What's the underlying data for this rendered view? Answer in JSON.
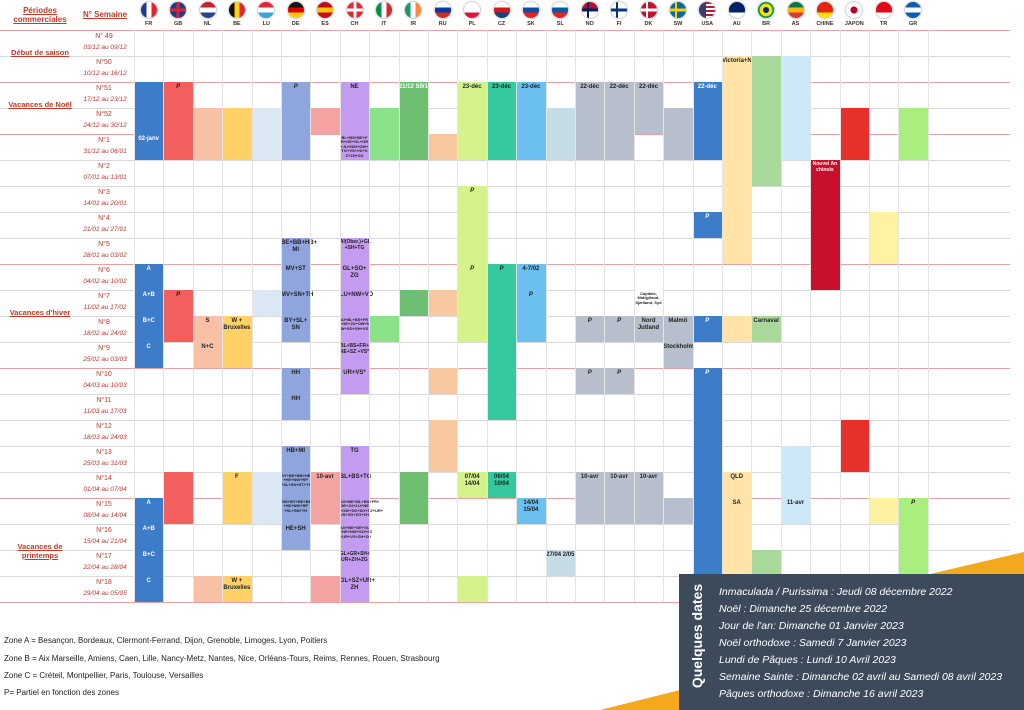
{
  "header": {
    "periods_label": "Périodes commerciales",
    "semaine_label": "N° Semaine"
  },
  "countries": [
    {
      "code": "FR",
      "flag": [
        "#1f3c8f",
        "#ffffff",
        "#e3262f"
      ],
      "dir": "v"
    },
    {
      "code": "GB",
      "flag": [
        "#1f3c8f",
        "#ffffff",
        "#d6262f"
      ],
      "dir": "uk"
    },
    {
      "code": "NL",
      "flag": [
        "#c8202d",
        "#ffffff",
        "#21468b"
      ],
      "dir": "h"
    },
    {
      "code": "BE",
      "flag": [
        "#111111",
        "#f7d417",
        "#e3262f"
      ],
      "dir": "v"
    },
    {
      "code": "LU",
      "flag": [
        "#e3262f",
        "#ffffff",
        "#3aa3dc"
      ],
      "dir": "h"
    },
    {
      "code": "DE",
      "flag": [
        "#111111",
        "#dd0000",
        "#ffce00"
      ],
      "dir": "h"
    },
    {
      "code": "ES",
      "flag": [
        "#c60b1e",
        "#ffc400",
        "#c60b1e"
      ],
      "dir": "h"
    },
    {
      "code": "CH",
      "flag": [
        "#e3262f",
        "#ffffff",
        "#e3262f"
      ],
      "dir": "cross"
    },
    {
      "code": "IT",
      "flag": [
        "#009246",
        "#ffffff",
        "#ce2b37"
      ],
      "dir": "v"
    },
    {
      "code": "IR",
      "flag": [
        "#169b62",
        "#ffffff",
        "#ff883e"
      ],
      "dir": "v"
    },
    {
      "code": "RU",
      "flag": [
        "#ffffff",
        "#0039a6",
        "#d52b1e"
      ],
      "dir": "h"
    },
    {
      "code": "PL",
      "flag": [
        "#ffffff",
        "#ffffff",
        "#dc143c"
      ],
      "dir": "h"
    },
    {
      "code": "CZ",
      "flag": [
        "#ffffff",
        "#d7141a",
        "#11457e"
      ],
      "dir": "h"
    },
    {
      "code": "SK",
      "flag": [
        "#ffffff",
        "#0b4ea2",
        "#ee1c25"
      ],
      "dir": "h"
    },
    {
      "code": "SL",
      "flag": [
        "#ffffff",
        "#005da4",
        "#ed1c24"
      ],
      "dir": "h"
    },
    {
      "code": "NO",
      "flag": [
        "#ba0c2f",
        "#ffffff",
        "#00205b"
      ],
      "dir": "nordic"
    },
    {
      "code": "FI",
      "flag": [
        "#ffffff",
        "#ffffff",
        "#003580"
      ],
      "dir": "nordic"
    },
    {
      "code": "DK",
      "flag": [
        "#c8102e",
        "#c8102e",
        "#ffffff"
      ],
      "dir": "nordic"
    },
    {
      "code": "SW",
      "flag": [
        "#006aa7",
        "#006aa7",
        "#fecc00"
      ],
      "dir": "nordic"
    },
    {
      "code": "USA",
      "flag": [
        "#b22234",
        "#ffffff",
        "#3c3b6e"
      ],
      "dir": "us"
    },
    {
      "code": "AU",
      "flag": [
        "#012169",
        "#012169",
        "#ffffff"
      ],
      "dir": "h"
    },
    {
      "code": "BR",
      "flag": [
        "#009c3b",
        "#ffdf00",
        "#002776"
      ],
      "dir": "br"
    },
    {
      "code": "AS",
      "flag": [
        "#007a4d",
        "#ffb612",
        "#de3831"
      ],
      "dir": "h"
    },
    {
      "code": "CHINE",
      "flag": [
        "#de2910",
        "#de2910",
        "#ffde00"
      ],
      "dir": "h"
    },
    {
      "code": "JAPON",
      "flag": [
        "#ffffff",
        "#ffffff",
        "#bc002d"
      ],
      "dir": "jp"
    },
    {
      "code": "TR",
      "flag": [
        "#e30a17",
        "#e30a17",
        "#ffffff"
      ],
      "dir": "h"
    },
    {
      "code": "GR",
      "flag": [
        "#0d5eaf",
        "#ffffff",
        "#0d5eaf"
      ],
      "dir": "h"
    }
  ],
  "weeks": [
    {
      "num": "N° 49",
      "dates": "03/12 au 09/12"
    },
    {
      "num": "N°50",
      "dates": "10/12 au 16/12"
    },
    {
      "num": "N°51",
      "dates": "17/12 au 23/12"
    },
    {
      "num": "N°52",
      "dates": "24/12 au 30/12"
    },
    {
      "num": "N°1",
      "dates": "31/12 au 06/01"
    },
    {
      "num": "N°2",
      "dates": "07/01 au 13/01"
    },
    {
      "num": "N°3",
      "dates": "14/01 au 20/01"
    },
    {
      "num": "N°4",
      "dates": "21/01 au 27/01"
    },
    {
      "num": "N°5",
      "dates": "28/01 au 03/02"
    },
    {
      "num": "N°6",
      "dates": "04/02 au 10/02"
    },
    {
      "num": "N°7",
      "dates": "11/02 au 17/02"
    },
    {
      "num": "N°8",
      "dates": "18/02 au 24/02"
    },
    {
      "num": "N°9",
      "dates": "25/02 au 03/03"
    },
    {
      "num": "N°10",
      "dates": "04/03 au 10/03"
    },
    {
      "num": "N°11",
      "dates": "11/03 au 17/03"
    },
    {
      "num": "N°12",
      "dates": "18/03 au 24/03"
    },
    {
      "num": "N°13",
      "dates": "25/03 au 31/03"
    },
    {
      "num": "N°14",
      "dates": "01/04 au 07/04"
    },
    {
      "num": "N°15",
      "dates": "08/04 au 14/04"
    },
    {
      "num": "N°16",
      "dates": "15/04 au 21/04"
    },
    {
      "num": "N°17",
      "dates": "22/04 au 28/04"
    },
    {
      "num": "N°18",
      "dates": "29/04 au 05/05"
    }
  ],
  "periods": [
    {
      "label": "Début de saison",
      "first_week": 0,
      "last_week": 1
    },
    {
      "label": "Vacances de Noël",
      "first_week": 2,
      "last_week": 3
    },
    {
      "label": "Vacances d'hiver",
      "first_week": 9,
      "last_week": 12
    },
    {
      "label": "Vacances de printemps",
      "first_week": 18,
      "last_week": 21
    }
  ],
  "blocks": [
    {
      "col": 0,
      "r0": 2,
      "r1": 4,
      "color": "#3d7cc9",
      "text": ""
    },
    {
      "col": 0,
      "r0": 4,
      "r1": 4,
      "color": "#3d7cc9",
      "text": "02-janv"
    },
    {
      "col": 1,
      "r0": 2,
      "r1": 4,
      "color": "#f25f5c",
      "text": "P"
    },
    {
      "col": 2,
      "r0": 3,
      "r1": 4,
      "color": "#f8c1a6",
      "text": ""
    },
    {
      "col": 3,
      "r0": 3,
      "r1": 4,
      "color": "#ffd166",
      "text": ""
    },
    {
      "col": 4,
      "r0": 3,
      "r1": 4,
      "color": "#dbe7f3",
      "text": ""
    },
    {
      "col": 5,
      "r0": 2,
      "r1": 4,
      "color": "#8ea5dd",
      "text": "P"
    },
    {
      "col": 6,
      "r0": 3,
      "r1": 3,
      "color": "#f5a3a3",
      "text": ""
    },
    {
      "col": 7,
      "r0": 2,
      "r1": 4,
      "color": "#c39bf0",
      "text": "NE"
    },
    {
      "col": 7,
      "r0": 4,
      "r1": 4,
      "color": "#c39bf0",
      "text": "BL+BS+BE+F R+GE+GL+GR +JU+NW+OW+ TG+VS+VD+S Z+ZH+ZG"
    },
    {
      "col": 8,
      "r0": 3,
      "r1": 4,
      "color": "#8ae38a",
      "text": ""
    },
    {
      "col": 9,
      "r0": 2,
      "r1": 4,
      "color": "#6fbf73",
      "text": "21/12 S0/1"
    },
    {
      "col": 10,
      "r0": 4,
      "r1": 4,
      "color": "#f8c9a0",
      "text": ""
    },
    {
      "col": 11,
      "r0": 2,
      "r1": 4,
      "color": "#d4f38c",
      "text": "23-déc"
    },
    {
      "col": 12,
      "r0": 2,
      "r1": 4,
      "color": "#35c9a0",
      "text": "23-déc"
    },
    {
      "col": 13,
      "r0": 2,
      "r1": 4,
      "color": "#6cc0f0",
      "text": "23-déc"
    },
    {
      "col": 14,
      "r0": 3,
      "r1": 4,
      "color": "#c5dbe6",
      "text": ""
    },
    {
      "col": 15,
      "r0": 2,
      "r1": 4,
      "color": "#b7bfcc",
      "text": "22-déc"
    },
    {
      "col": 16,
      "r0": 2,
      "r1": 4,
      "color": "#b7bfcc",
      "text": "22-déc"
    },
    {
      "col": 17,
      "r0": 2,
      "r1": 3,
      "color": "#b7bfcc",
      "text": "22-déc"
    },
    {
      "col": 18,
      "r0": 3,
      "r1": 4,
      "color": "#b7bfcc",
      "text": ""
    },
    {
      "col": 19,
      "r0": 2,
      "r1": 4,
      "color": "#3d7cc9",
      "text": "22-déc"
    },
    {
      "col": 20,
      "r0": 1,
      "r1": 8,
      "color": "#ffe3a8",
      "text": "Victoria+NW"
    },
    {
      "col": 21,
      "r0": 1,
      "r1": 5,
      "color": "#a9d99a",
      "text": ""
    },
    {
      "col": 22,
      "r0": 1,
      "r1": 4,
      "color": "#cde8f8",
      "text": ""
    },
    {
      "col": 24,
      "r0": 3,
      "r1": 4,
      "color": "#e8302b",
      "text": ""
    },
    {
      "col": 26,
      "r0": 3,
      "r1": 4,
      "color": "#a9ef80",
      "text": ""
    },
    {
      "col": 23,
      "r0": 5,
      "r1": 9,
      "color": "#c8102e",
      "text": "Nouvel An chinois"
    },
    {
      "col": 25,
      "r0": 7,
      "r1": 8,
      "color": "#fff2a0",
      "text": ""
    },
    {
      "col": 19,
      "r0": 7,
      "r1": 7,
      "color": "#3d7cc9",
      "text": "P"
    },
    {
      "col": 11,
      "r0": 6,
      "r1": 8,
      "color": "#d4f38c",
      "text": "P"
    },
    {
      "col": 5,
      "r0": 8,
      "r1": 8,
      "color": "#8ea5dd",
      "text": "BE+BB+HB+ MI"
    },
    {
      "col": 7,
      "r0": 8,
      "r1": 8,
      "color": "#c39bf0",
      "text": "AI(Ober.)+GL +SH+TG"
    },
    {
      "col": 0,
      "r0": 9,
      "r1": 9,
      "color": "#3d7cc9",
      "text": "A"
    },
    {
      "col": 0,
      "r0": 10,
      "r1": 10,
      "color": "#3d7cc9",
      "text": "A+B"
    },
    {
      "col": 0,
      "r0": 11,
      "r1": 11,
      "color": "#3d7cc9",
      "text": "B+C"
    },
    {
      "col": 0,
      "r0": 12,
      "r1": 12,
      "color": "#3d7cc9",
      "text": "C"
    },
    {
      "col": 1,
      "r0": 10,
      "r1": 11,
      "color": "#f25f5c",
      "text": "P"
    },
    {
      "col": 2,
      "r0": 11,
      "r1": 11,
      "color": "#f8c1a6",
      "text": "S"
    },
    {
      "col": 2,
      "r0": 12,
      "r1": 12,
      "color": "#f8c1a6",
      "text": "N+C"
    },
    {
      "col": 3,
      "r0": 11,
      "r1": 12,
      "color": "#ffd166",
      "text": "W + Bruxelles"
    },
    {
      "col": 4,
      "r0": 10,
      "r1": 10,
      "color": "#dbe7f3",
      "text": ""
    },
    {
      "col": 5,
      "r0": 9,
      "r1": 9,
      "color": "#8ea5dd",
      "text": "MV+ST"
    },
    {
      "col": 5,
      "r0": 10,
      "r1": 10,
      "color": "#8ea5dd",
      "text": "MV+SN+TH"
    },
    {
      "col": 5,
      "r0": 11,
      "r1": 11,
      "color": "#8ea5dd",
      "text": "BY+SL+ SN"
    },
    {
      "col": 7,
      "r0": 9,
      "r1": 9,
      "color": "#c39bf0",
      "text": "GL+SO+ ZG"
    },
    {
      "col": 7,
      "r0": 10,
      "r1": 10,
      "color": "#c39bf0",
      "text": "LU+NW+VD"
    },
    {
      "col": 7,
      "r0": 11,
      "r1": 11,
      "color": "#c39bf0",
      "text": "AI+BL+BS+FR +GE+JU+OW+N W+SG+SH+VS"
    },
    {
      "col": 7,
      "r0": 12,
      "r1": 12,
      "color": "#c39bf0",
      "text": "BL+BS+FR+ NE+SZ +VS*"
    },
    {
      "col": 8,
      "r0": 11,
      "r1": 11,
      "color": "#8ae38a",
      "text": ""
    },
    {
      "col": 9,
      "r0": 10,
      "r1": 10,
      "color": "#6fbf73",
      "text": ""
    },
    {
      "col": 10,
      "r0": 10,
      "r1": 10,
      "color": "#f8c9a0",
      "text": ""
    },
    {
      "col": 11,
      "r0": 9,
      "r1": 11,
      "color": "#d4f38c",
      "text": "P"
    },
    {
      "col": 12,
      "r0": 9,
      "r1": 14,
      "color": "#35c9a0",
      "text": "P"
    },
    {
      "col": 13,
      "r0": 9,
      "r1": 9,
      "color": "#6cc0f0",
      "text": "4-7/02"
    },
    {
      "col": 13,
      "r0": 10,
      "r1": 11,
      "color": "#6cc0f0",
      "text": "P"
    },
    {
      "col": 15,
      "r0": 11,
      "r1": 11,
      "color": "#b7bfcc",
      "text": "P"
    },
    {
      "col": 16,
      "r0": 11,
      "r1": 11,
      "color": "#b7bfcc",
      "text": "P"
    },
    {
      "col": 17,
      "r0": 11,
      "r1": 11,
      "color": "#b7bfcc",
      "text": "Nord Jutland"
    },
    {
      "col": 18,
      "r0": 11,
      "r1": 11,
      "color": "#b7bfcc",
      "text": "Malmö"
    },
    {
      "col": 18,
      "r0": 12,
      "r1": 12,
      "color": "#b7bfcc",
      "text": "Stockholm"
    },
    {
      "col": 19,
      "r0": 11,
      "r1": 11,
      "color": "#3d7cc9",
      "text": "P"
    },
    {
      "col": 20,
      "r0": 11,
      "r1": 11,
      "color": "#ffe3a8",
      "text": ""
    },
    {
      "col": 21,
      "r0": 11,
      "r1": 11,
      "color": "#a9d99a",
      "text": "Carnaval"
    },
    {
      "col": 5,
      "r0": 13,
      "r1": 13,
      "color": "#8ea5dd",
      "text": "HH"
    },
    {
      "col": 5,
      "r0": 14,
      "r1": 14,
      "color": "#8ea5dd",
      "text": "HH"
    },
    {
      "col": 7,
      "r0": 13,
      "r1": 13,
      "color": "#c39bf0",
      "text": "UR+VS*"
    },
    {
      "col": 10,
      "r0": 13,
      "r1": 13,
      "color": "#f8c9a0",
      "text": ""
    },
    {
      "col": 15,
      "r0": 13,
      "r1": 13,
      "color": "#b7bfcc",
      "text": "P"
    },
    {
      "col": 16,
      "r0": 13,
      "r1": 13,
      "color": "#b7bfcc",
      "text": "P"
    },
    {
      "col": 19,
      "r0": 13,
      "r1": 21,
      "color": "#3d7cc9",
      "text": "P"
    },
    {
      "col": 10,
      "r0": 15,
      "r1": 16,
      "color": "#f8c9a0",
      "text": ""
    },
    {
      "col": 24,
      "r0": 15,
      "r1": 16,
      "color": "#e8302b",
      "text": ""
    },
    {
      "col": 5,
      "r0": 16,
      "r1": 16,
      "color": "#8ea5dd",
      "text": "HB+MI"
    },
    {
      "col": 7,
      "r0": 16,
      "r1": 16,
      "color": "#c39bf0",
      "text": "TG"
    },
    {
      "col": 22,
      "r0": 16,
      "r1": 17,
      "color": "#cde8f8",
      "text": ""
    },
    {
      "col": 1,
      "r0": 17,
      "r1": 18,
      "color": "#f25f5c",
      "text": ""
    },
    {
      "col": 3,
      "r0": 17,
      "r1": 18,
      "color": "#ffd166",
      "text": "F"
    },
    {
      "col": 4,
      "r0": 17,
      "r1": 18,
      "color": "#dbe7f3",
      "text": ""
    },
    {
      "col": 5,
      "r0": 17,
      "r1": 17,
      "color": "#8ea5dd",
      "text": "BY+BE+BB+HB +HE+NW+RP +SL+SN+ST+TH"
    },
    {
      "col": 5,
      "r0": 18,
      "r1": 18,
      "color": "#8ea5dd",
      "text": "BW+BY+BE+BB +HE+NW+RP +SL+SN+TH"
    },
    {
      "col": 5,
      "r0": 19,
      "r1": 19,
      "color": "#8ea5dd",
      "text": "HE+SH"
    },
    {
      "col": 6,
      "r0": 17,
      "r1": 18,
      "color": "#f5a3a3",
      "text": "10-avr"
    },
    {
      "col": 7,
      "r0": 17,
      "r1": 17,
      "color": "#c39bf0",
      "text": "BL+BS+TG"
    },
    {
      "col": 7,
      "r0": 18,
      "r1": 18,
      "color": "#c39bf0",
      "text": "AG+BE+BL+BS+FR+ GE+JU+LU+NE +OW+SG+SO+SZ+UR+ VS+VD+ZG+ZH"
    },
    {
      "col": 7,
      "r0": 19,
      "r1": 19,
      "color": "#c39bf0",
      "text": "AG+BE+GE+GL +NE+NW+SO+SZ +UR+VS+ZH+ZG"
    },
    {
      "col": 7,
      "r0": 20,
      "r1": 20,
      "color": "#c39bf0",
      "text": "GL+GR+SH+ UR+ZH+ZG"
    },
    {
      "col": 7,
      "r0": 21,
      "r1": 21,
      "color": "#c39bf0",
      "text": "GL+SZ+UR+ ZH"
    },
    {
      "col": 9,
      "r0": 17,
      "r1": 18,
      "color": "#6fbf73",
      "text": ""
    },
    {
      "col": 11,
      "r0": 17,
      "r1": 17,
      "color": "#d4f38c",
      "text": "07/04 14/04"
    },
    {
      "col": 12,
      "r0": 17,
      "r1": 17,
      "color": "#35c9a0",
      "text": "06/04 10/04"
    },
    {
      "col": 13,
      "r0": 18,
      "r1": 18,
      "color": "#6cc0f0",
      "text": "14/04 15/04"
    },
    {
      "col": 14,
      "r0": 20,
      "r1": 20,
      "color": "#c5dbe6",
      "text": "27/04 2/05"
    },
    {
      "col": 15,
      "r0": 17,
      "r1": 18,
      "color": "#b7bfcc",
      "text": "10-avr"
    },
    {
      "col": 16,
      "r0": 17,
      "r1": 18,
      "color": "#b7bfcc",
      "text": "10-avr"
    },
    {
      "col": 17,
      "r0": 17,
      "r1": 18,
      "color": "#b7bfcc",
      "text": "10-avr"
    },
    {
      "col": 18,
      "r0": 18,
      "r1": 18,
      "color": "#b7bfcc",
      "text": ""
    },
    {
      "col": 20,
      "r0": 17,
      "r1": 17,
      "color": "#ffe3a8",
      "text": "QLD"
    },
    {
      "col": 20,
      "r0": 18,
      "r1": 20,
      "color": "#ffe3a8",
      "text": "SA"
    },
    {
      "col": 21,
      "r0": 20,
      "r1": 20,
      "color": "#a9d99a",
      "text": ""
    },
    {
      "col": 22,
      "r0": 18,
      "r1": 18,
      "color": "#cde8f8",
      "text": "11-avr"
    },
    {
      "col": 25,
      "r0": 18,
      "r1": 18,
      "color": "#fff2a0",
      "text": ""
    },
    {
      "col": 26,
      "r0": 18,
      "r1": 20,
      "color": "#a9ef80",
      "text": "P"
    },
    {
      "col": 0,
      "r0": 18,
      "r1": 18,
      "color": "#3d7cc9",
      "text": "A"
    },
    {
      "col": 0,
      "r0": 19,
      "r1": 19,
      "color": "#3d7cc9",
      "text": "A+B"
    },
    {
      "col": 0,
      "r0": 20,
      "r1": 20,
      "color": "#3d7cc9",
      "text": "B+C"
    },
    {
      "col": 0,
      "r0": 21,
      "r1": 21,
      "color": "#3d7cc9",
      "text": "C"
    },
    {
      "col": 2,
      "r0": 21,
      "r1": 21,
      "color": "#f8c1a6",
      "text": ""
    },
    {
      "col": 3,
      "r0": 21,
      "r1": 21,
      "color": "#ffd166",
      "text": "W + Bruxelles"
    },
    {
      "col": 6,
      "r0": 21,
      "r1": 21,
      "color": "#f5a3a3",
      "text": ""
    },
    {
      "col": 11,
      "r0": 21,
      "r1": 21,
      "color": "#d4f38c",
      "text": ""
    },
    {
      "col": 17,
      "r0": 10,
      "r1": 10,
      "color": "#ffffff",
      "text": "Capitale, Midtjylland, Sjælland, Syd"
    }
  ],
  "notes": [
    "Zone A = Besançon, Bordeaux, Clermont-Ferrand, Dijon, Grenoble, Limoges, Lyon, Poitiers",
    "Zone B = Aix Marseille, Amiens, Caen, Lille, Nancy-Metz, Nantes, Nice, Orléans-Tours, Reims, Rennes, Rouen, Strasbourg",
    "Zone C = Créteil, Montpellier, Paris, Toulouse, Versailles",
    "P= Partiel en fonction des zones"
  ],
  "key_dates": {
    "title": "Quelques dates",
    "lines": [
      "Inmaculada / Purissima  : Jeudi 08 décembre 2022",
      "Noël : Dimanche 25 décembre 2022",
      "Jour de l'an: Dimanche 01 Janvier 2023",
      "Noël orthodoxe : Samedi 7 Janvier 2023",
      "Lundi de Pâques : Lundi 10 Avril 2023",
      "Semaine Sainte : Dimanche 02 avril au Samedi 08 avril 2023",
      "Pâques orthodoxe : Dimanche 16 avril 2023"
    ]
  }
}
